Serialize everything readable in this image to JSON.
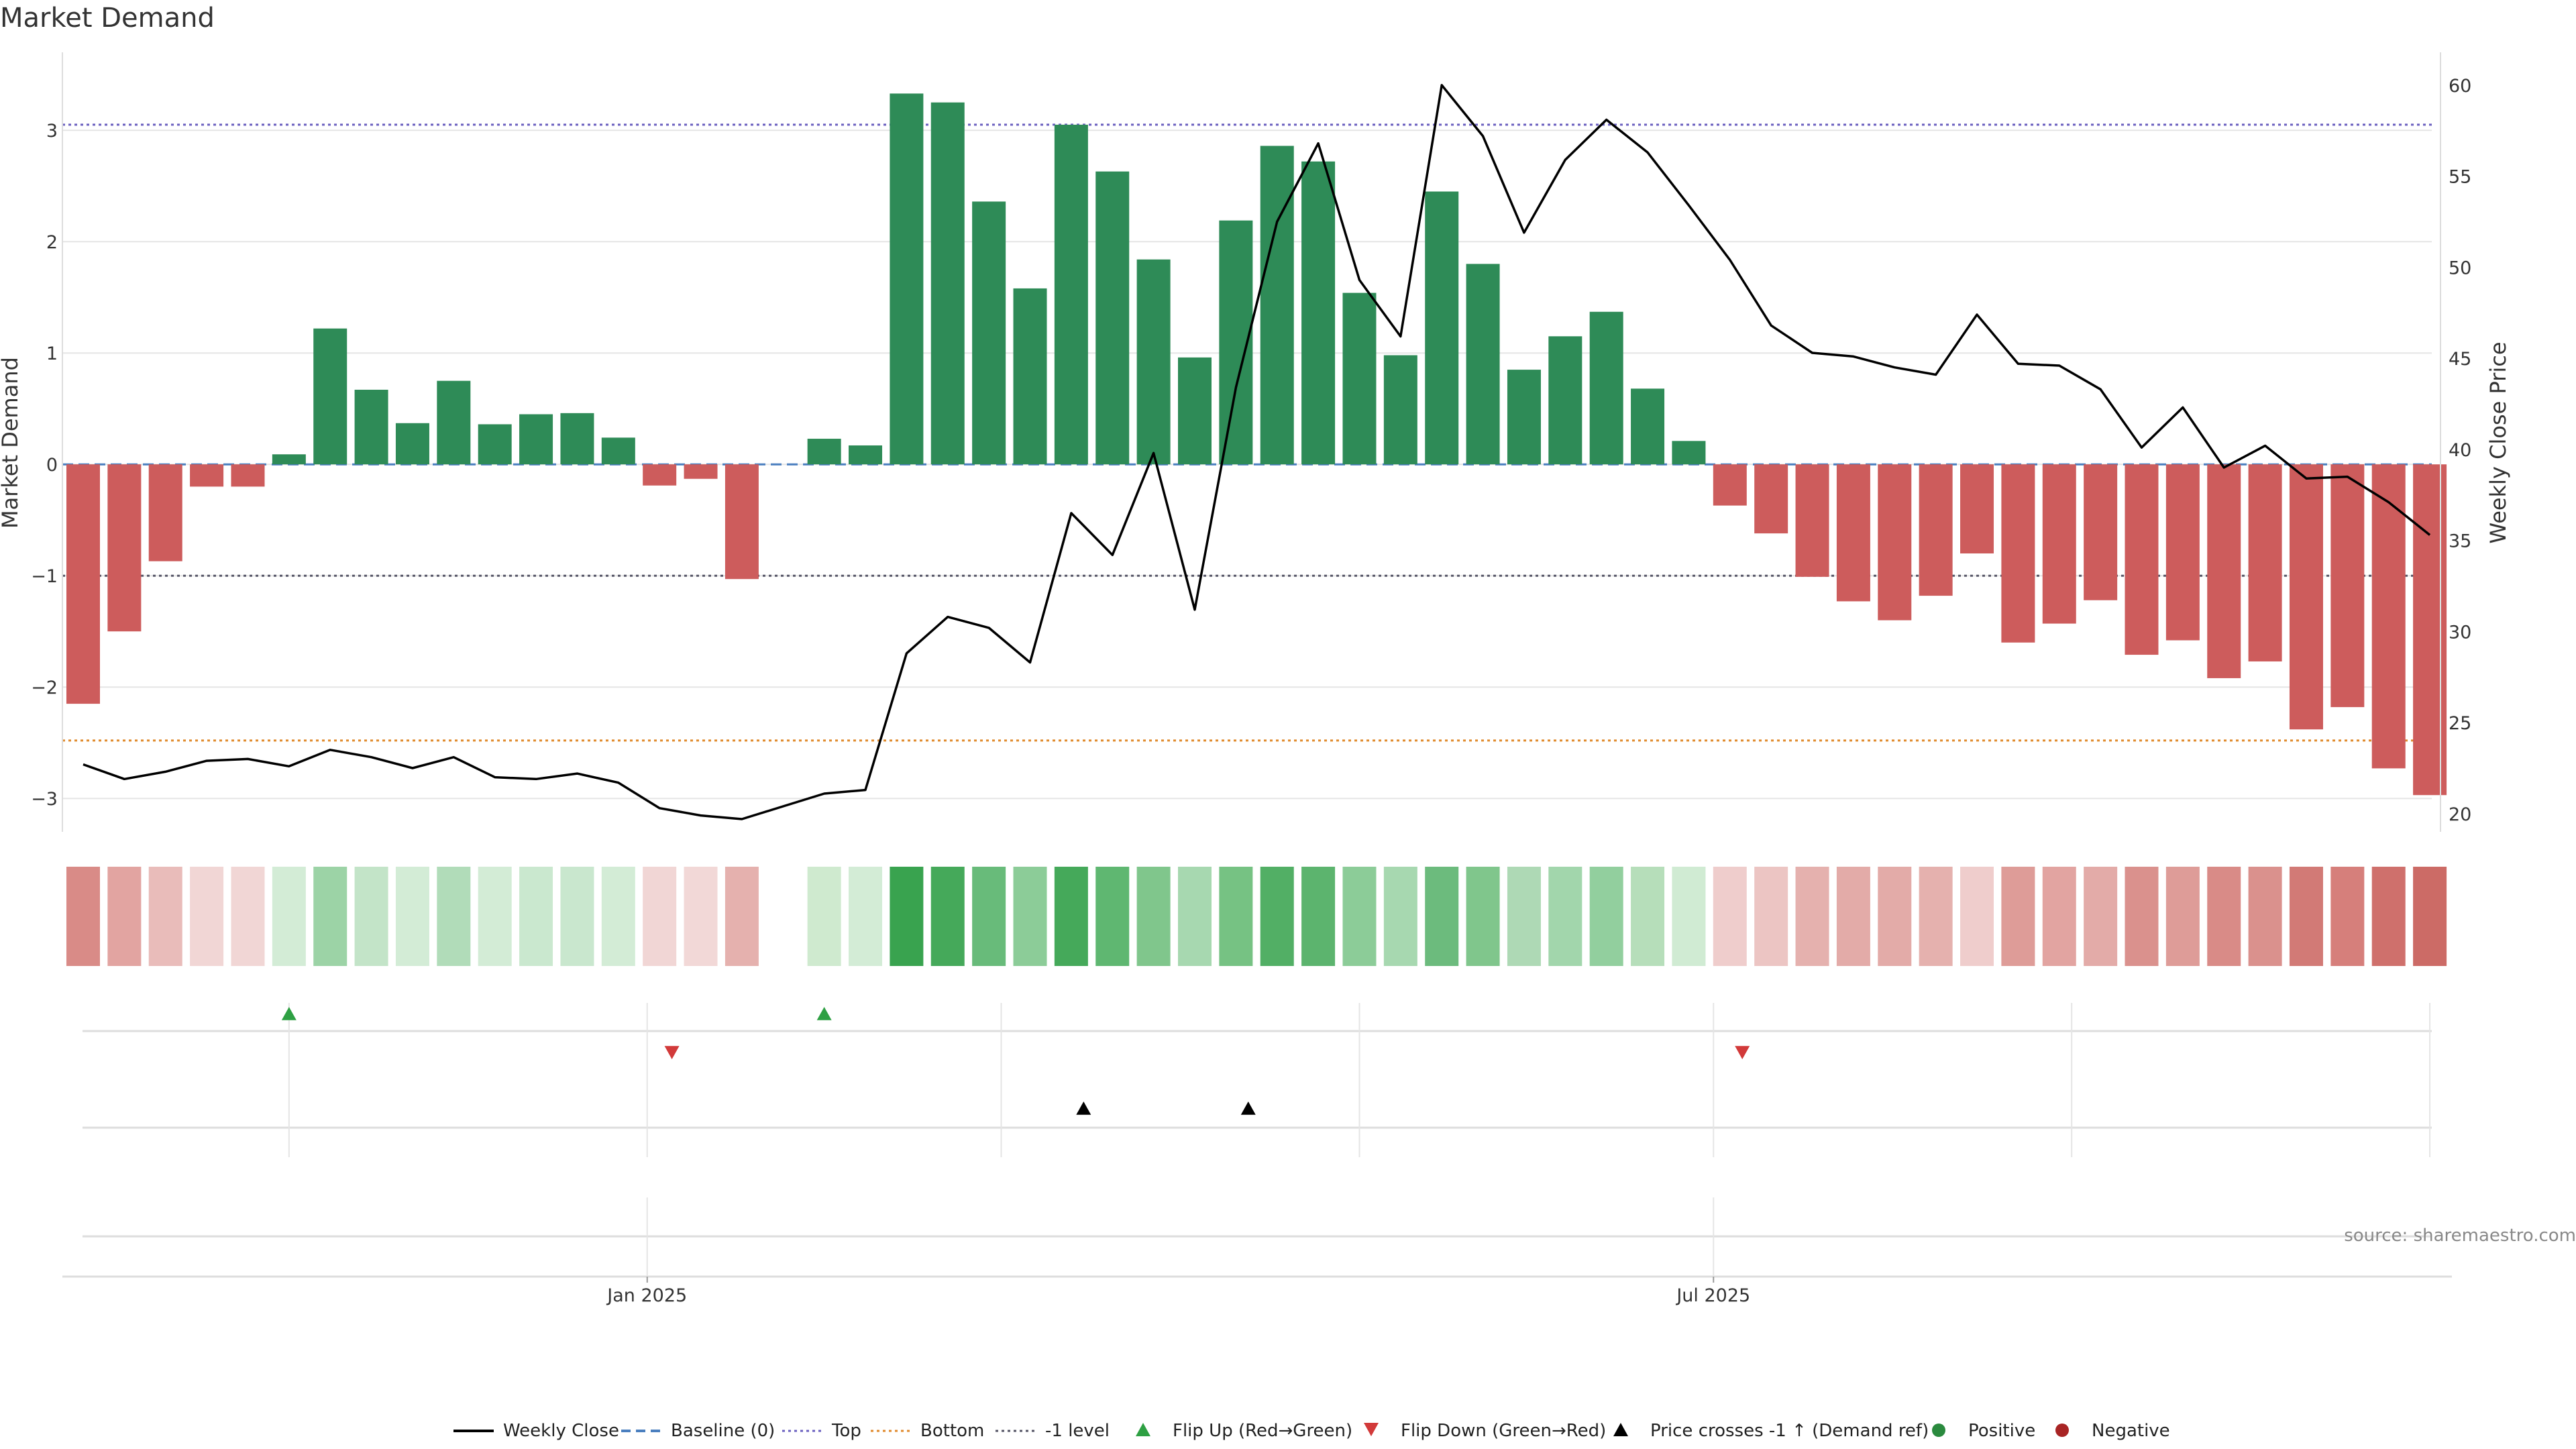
{
  "chart_data": {
    "type": "bar",
    "title": "Market Demand",
    "ylabel_left": "Market Demand",
    "ylabel_right": "Weekly Close Price",
    "xlabel": "",
    "ylim_left": [
      -3.3,
      3.7
    ],
    "ylim_right": [
      19,
      61.8
    ],
    "left_ticks": [
      3,
      2,
      1,
      0,
      -1,
      -2,
      -3
    ],
    "left_tick_labels": [
      "3",
      "2",
      "1",
      "0",
      "−1",
      "−2",
      "−3"
    ],
    "right_ticks": [
      60,
      55,
      50,
      45,
      40,
      35,
      30,
      25,
      20
    ],
    "right_tick_labels": [
      "60",
      "55",
      "50",
      "45",
      "40",
      "35",
      "30",
      "25",
      "20"
    ],
    "x_tick_labels": [
      {
        "label": "Jan 2025",
        "week": 13.7
      },
      {
        "label": "Jul 2025",
        "week": 39.6
      }
    ],
    "reference_lines": {
      "baseline": 0,
      "top": 3.05,
      "bottom": -2.48,
      "minus_one": -1
    },
    "demand_values": [
      -2.15,
      -1.5,
      -0.87,
      -0.2,
      -0.2,
      0.09,
      1.22,
      0.67,
      0.37,
      0.75,
      0.36,
      0.45,
      0.46,
      0.24,
      -0.19,
      -0.13,
      -1.03,
      null,
      0.23,
      0.17,
      3.33,
      3.25,
      2.36,
      1.58,
      3.05,
      2.63,
      1.84,
      0.96,
      2.19,
      2.86,
      2.72,
      1.54,
      0.98,
      2.45,
      1.8,
      0.85,
      1.15,
      1.37,
      0.68,
      0.21,
      -0.37,
      -0.62,
      -1.01,
      -1.23,
      -1.4,
      -1.18,
      -0.8,
      -1.6,
      -1.43,
      -1.22,
      -1.71,
      -1.58,
      -1.92,
      -1.77,
      -2.38,
      -2.18,
      -2.73,
      -2.97
    ],
    "weekly_close": [
      22.7,
      21.9,
      22.3,
      22.9,
      23.0,
      22.6,
      23.5,
      23.1,
      22.5,
      23.1,
      22.0,
      21.9,
      22.2,
      21.7,
      20.3,
      19.9,
      19.7,
      20.4,
      21.1,
      21.3,
      28.8,
      30.8,
      30.2,
      28.3,
      36.5,
      34.2,
      39.8,
      31.2,
      43.4,
      52.5,
      56.8,
      49.3,
      46.2,
      60.0,
      57.2,
      51.9,
      55.9,
      58.1,
      56.3,
      53.4,
      50.4,
      46.8,
      45.3,
      45.1,
      44.5,
      44.1,
      47.4,
      44.7,
      44.6,
      43.3,
      40.1,
      42.3,
      39.0,
      40.2,
      38.4,
      38.5,
      37.1,
      35.3
    ],
    "heat_strip": {
      "colors": [
        "#d98b87",
        "#e2a4a1",
        "#e9bcba",
        "#f1d6d5",
        "#f1d6d5",
        "#d3ecd6",
        "#9cd3a6",
        "#c3e4c8",
        "#d3ecd6",
        "#b1dcb9",
        "#d3ecd6",
        "#cae8cf",
        "#c9e7ce",
        "#d3ecd6",
        "#f1d6d5",
        "#f2d8d7",
        "#e5b1ae",
        null,
        "#cfeacf",
        "#d3ecd6",
        "#39a34f",
        "#45a95a",
        "#68bb7a",
        "#8ccc98",
        "#45a95a",
        "#5fb771",
        "#80c68c",
        "#a7d8b0",
        "#76c283",
        "#52af65",
        "#5cb46e",
        "#8ccc98",
        "#a7d8b0",
        "#6cbb7d",
        "#80c68c",
        "#aed9b5",
        "#a2d6ac",
        "#92cf9e",
        "#b6deba",
        "#d0ebd3",
        "#efcdcc",
        "#ecc5c3",
        "#e5b1ae",
        "#e3aba8",
        "#e3aba8",
        "#e5b1ae",
        "#efcdcc",
        "#de9c98",
        "#e2a4a1",
        "#e3aba8",
        "#da918d",
        "#de9c98",
        "#d98b87",
        "#da918d",
        "#d27a76",
        "#d67f7b",
        "#cf706c",
        "#cc6b66"
      ]
    },
    "flip_up_weeks": [
      5,
      18
    ],
    "flip_down_weeks": [
      14.3,
      40.3
    ],
    "price_cross_weeks": [
      24.3,
      28.3
    ],
    "source": "source: sharemaestro.com",
    "legend": [
      {
        "label": "Weekly Close",
        "kind": "solid-line",
        "color": "#000000"
      },
      {
        "label": "Baseline (0)",
        "kind": "dash-line",
        "color": "#4a7fbf"
      },
      {
        "label": "Top",
        "kind": "dot-line",
        "color": "#6a5fbf"
      },
      {
        "label": "Bottom",
        "kind": "dot-line",
        "color": "#e08a2c"
      },
      {
        "label": "-1 level",
        "kind": "dot-line",
        "color": "#555566"
      },
      {
        "label": "Flip Up (Red→Green)",
        "kind": "triangle-up",
        "color": "#2ea043"
      },
      {
        "label": "Flip Down (Green→Red)",
        "kind": "triangle-down",
        "color": "#d23a3a"
      },
      {
        "label": "Price crosses -1 ↑ (Demand ref)",
        "kind": "triangle-up",
        "color": "#000000"
      },
      {
        "label": "Positive",
        "kind": "circle",
        "color": "#2a8a3e"
      },
      {
        "label": "Negative",
        "kind": "circle",
        "color": "#a82424"
      }
    ],
    "colors": {
      "positive_bar": "#2e8b57",
      "negative_bar": "#cd5c5c",
      "price_line": "#000000",
      "grid": "#e5e5e5"
    }
  }
}
